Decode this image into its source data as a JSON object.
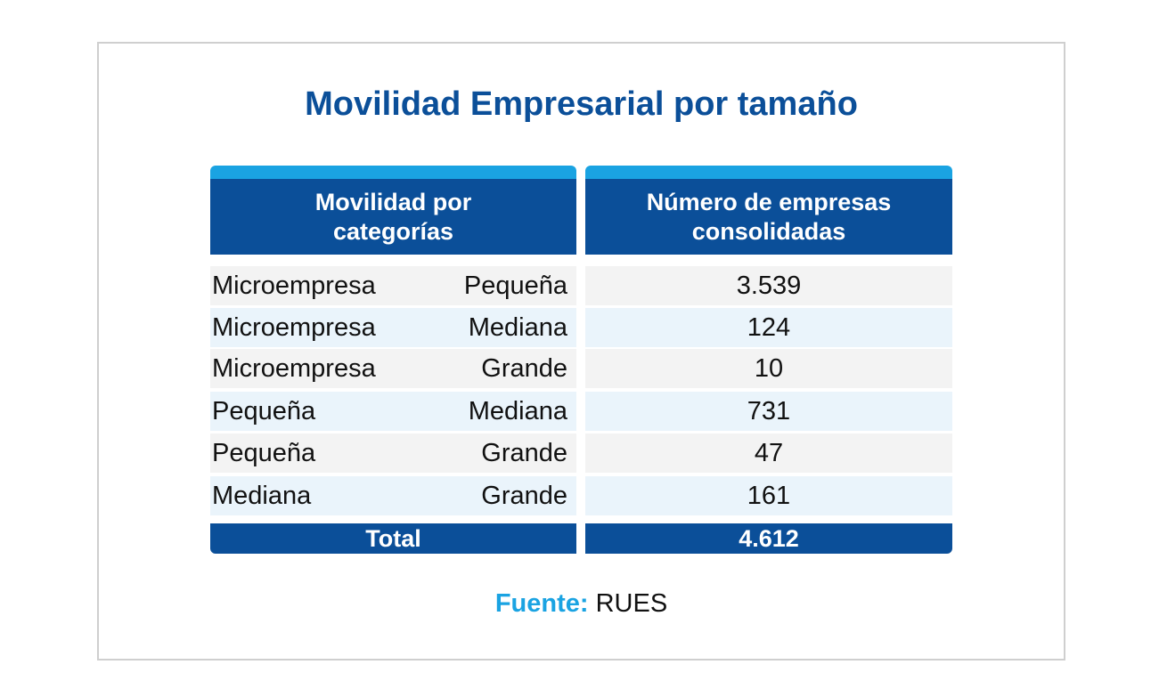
{
  "title": "Movilidad Empresarial por tamaño",
  "table": {
    "headers": [
      "Movilidad por categorías",
      "Número de empresas consolidadas"
    ],
    "rows": [
      [
        "Microempresa",
        "Pequeña",
        "3.539"
      ],
      [
        "Microempresa",
        "Mediana",
        "124"
      ],
      [
        "Microempresa",
        "Grande",
        "10"
      ],
      [
        "Pequeña",
        "Mediana",
        "731"
      ],
      [
        "Pequeña",
        "Grande",
        "47"
      ],
      [
        "Mediana",
        "Grande",
        "161"
      ]
    ],
    "total": [
      "Total",
      "4.612"
    ]
  },
  "source": {
    "label": "Fuente:",
    "text": "RUES"
  }
}
